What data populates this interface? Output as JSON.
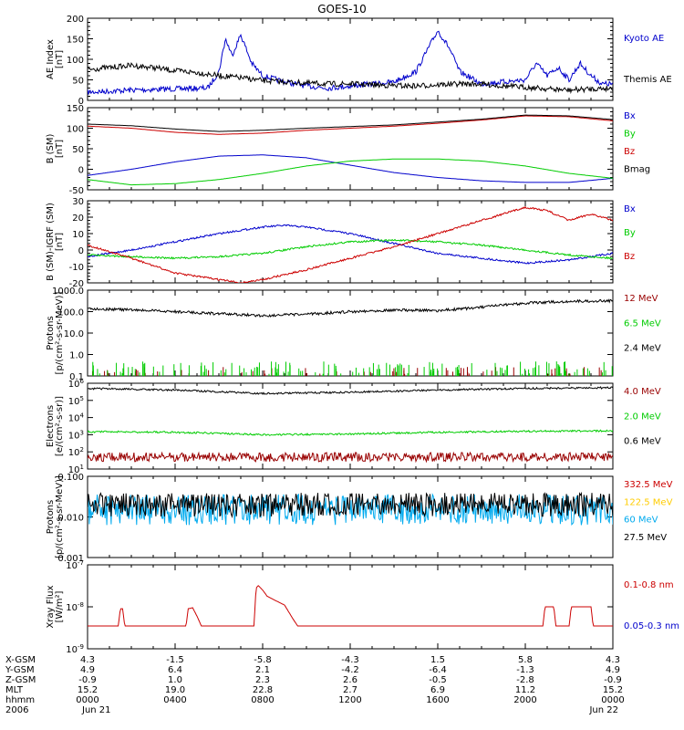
{
  "figure": {
    "title": "GOES-10"
  },
  "chart_data": [
    {
      "type": "line",
      "ylabel": [
        "AE Index",
        "[nT]"
      ],
      "ylim": [
        0,
        200
      ],
      "yscale": "linear",
      "yticks": [
        0,
        50,
        100,
        150,
        200
      ],
      "series": [
        {
          "name": "Kyoto AE",
          "color": "#0000cc",
          "x_hours": [
            0,
            2,
            4,
            5.5,
            6,
            6.3,
            6.6,
            7,
            7.5,
            8,
            9,
            10,
            11,
            12,
            13,
            14,
            15,
            15.5,
            16,
            16.5,
            17,
            18,
            19,
            20,
            20.5,
            21,
            21.5,
            22,
            22.5,
            23,
            23.5,
            24
          ],
          "values": [
            20,
            25,
            28,
            30,
            70,
            150,
            110,
            160,
            90,
            60,
            45,
            35,
            30,
            35,
            40,
            45,
            70,
            120,
            170,
            130,
            70,
            40,
            45,
            50,
            90,
            60,
            80,
            50,
            90,
            60,
            40,
            40
          ]
        },
        {
          "name": "Themis AE",
          "color": "#000000",
          "x_hours": [
            0,
            1,
            2,
            3,
            4,
            5,
            6,
            7,
            8,
            9,
            10,
            11,
            12,
            13,
            14,
            15,
            16,
            17,
            18,
            19,
            20,
            21,
            22,
            23,
            24
          ],
          "values": [
            75,
            80,
            85,
            80,
            72,
            68,
            60,
            55,
            48,
            45,
            42,
            40,
            40,
            38,
            36,
            35,
            38,
            40,
            40,
            35,
            32,
            28,
            25,
            28,
            30
          ]
        }
      ]
    },
    {
      "type": "line",
      "ylabel": [
        "B (SM)",
        "[nT]"
      ],
      "ylim": [
        -50,
        150
      ],
      "yscale": "linear",
      "yticks": [
        -50,
        0,
        50,
        100,
        150
      ],
      "series": [
        {
          "name": "Bx",
          "color": "#0000cc",
          "x_hours": [
            0,
            2,
            4,
            6,
            8,
            10,
            12,
            14,
            16,
            18,
            20,
            22,
            24
          ],
          "values": [
            -15,
            0,
            18,
            32,
            35,
            28,
            10,
            -8,
            -20,
            -28,
            -32,
            -32,
            -22
          ]
        },
        {
          "name": "By",
          "color": "#00cc00",
          "x_hours": [
            0,
            2,
            4,
            6,
            8,
            10,
            12,
            14,
            16,
            18,
            20,
            22,
            24
          ],
          "values": [
            -25,
            -38,
            -35,
            -25,
            -10,
            8,
            20,
            25,
            25,
            20,
            8,
            -10,
            -22
          ]
        },
        {
          "name": "Bz",
          "color": "#cc0000",
          "x_hours": [
            0,
            2,
            4,
            6,
            8,
            10,
            12,
            14,
            16,
            18,
            20,
            22,
            24
          ],
          "values": [
            105,
            100,
            90,
            85,
            88,
            95,
            100,
            105,
            112,
            120,
            130,
            128,
            118
          ]
        },
        {
          "name": "Bmag",
          "color": "#000000",
          "x_hours": [
            0,
            2,
            4,
            6,
            8,
            10,
            12,
            14,
            16,
            18,
            20,
            22,
            24
          ],
          "values": [
            110,
            106,
            98,
            92,
            95,
            100,
            104,
            108,
            115,
            122,
            132,
            130,
            121
          ]
        }
      ]
    },
    {
      "type": "line",
      "ylabel": [
        "B (SM)-IGRF (SM)",
        "[nT]"
      ],
      "ylim": [
        -20,
        30
      ],
      "yscale": "linear",
      "yticks": [
        -20,
        -10,
        0,
        10,
        20,
        30
      ],
      "series": [
        {
          "name": "Bx",
          "color": "#0000cc",
          "x_hours": [
            0,
            2,
            4,
            6,
            8,
            9,
            10,
            12,
            14,
            16,
            18,
            20,
            22,
            24
          ],
          "values": [
            -4,
            0,
            5,
            10,
            14,
            15,
            14,
            10,
            4,
            -2,
            -5,
            -8,
            -6,
            -2
          ]
        },
        {
          "name": "By",
          "color": "#00cc00",
          "x_hours": [
            0,
            2,
            4,
            6,
            8,
            10,
            12,
            14,
            16,
            18,
            20,
            22,
            24
          ],
          "values": [
            -3,
            -4,
            -5,
            -4,
            -2,
            2,
            5,
            6,
            5,
            3,
            0,
            -3,
            -5
          ]
        },
        {
          "name": "Bz",
          "color": "#cc0000",
          "x_hours": [
            0,
            2,
            4,
            6,
            7,
            8,
            10,
            12,
            14,
            16,
            18,
            19,
            20,
            21,
            22,
            23,
            24
          ],
          "values": [
            3,
            -5,
            -14,
            -18,
            -20,
            -18,
            -12,
            -5,
            2,
            10,
            18,
            22,
            26,
            24,
            18,
            22,
            18
          ]
        }
      ]
    },
    {
      "type": "line",
      "ylabel": [
        "Protons",
        "[p/(cm²-s-sr-MeV)]"
      ],
      "ylim": [
        0.1,
        1000
      ],
      "yscale": "log",
      "yticks": [
        0.1,
        1,
        10,
        100,
        1000
      ],
      "ytick_labels": [
        "0.1",
        "1.0",
        "10.0",
        "100.0",
        "1000.0"
      ],
      "series": [
        {
          "name": "12 MeV",
          "color": "#990000",
          "x_hours": [
            0,
            24
          ],
          "values": [
            0.1,
            0.1
          ],
          "note_visible": "sporadic spikes near floor"
        },
        {
          "name": "6.5 MeV",
          "color": "#00cc00",
          "x_hours": [
            0,
            24
          ],
          "values": [
            0.15,
            0.15
          ]
        },
        {
          "name": "2.4 MeV",
          "color": "#000000",
          "x_hours": [
            0,
            2,
            4,
            6,
            8,
            10,
            12,
            14,
            16,
            18,
            20,
            22,
            24
          ],
          "values": [
            140,
            120,
            100,
            80,
            65,
            75,
            100,
            120,
            110,
            160,
            250,
            300,
            320
          ]
        }
      ]
    },
    {
      "type": "line",
      "ylabel": [
        "Electrons",
        "[e/(cm²-s-sr)]"
      ],
      "ylim": [
        10,
        1000000
      ],
      "yscale": "log",
      "yticks": [
        10,
        100,
        1000,
        10000,
        100000,
        1000000
      ],
      "series": [
        {
          "name": "4.0 MeV",
          "color": "#990000",
          "x_hours": [
            0,
            24
          ],
          "values": [
            50,
            50
          ]
        },
        {
          "name": "2.0 MeV",
          "color": "#00cc00",
          "x_hours": [
            0,
            4,
            8,
            12,
            16,
            20,
            24
          ],
          "values": [
            1500,
            1400,
            1000,
            1100,
            1400,
            1600,
            1700
          ]
        },
        {
          "name": "0.6 MeV",
          "color": "#000000",
          "x_hours": [
            0,
            4,
            8,
            12,
            16,
            20,
            24
          ],
          "values": [
            500000,
            400000,
            250000,
            300000,
            400000,
            500000,
            550000
          ]
        }
      ]
    },
    {
      "type": "line",
      "ylabel": [
        "Protons",
        "[p/(cm²-s-sr-MeV)]"
      ],
      "ylim": [
        0.001,
        0.1
      ],
      "yscale": "log",
      "yticks": [
        0.001,
        0.01,
        0.1
      ],
      "ytick_labels": [
        "0.001",
        "0.010",
        "0.100"
      ],
      "series": [
        {
          "name": "332.5 MeV",
          "color": "#cc0000",
          "x_hours": [],
          "values": []
        },
        {
          "name": "122.5 MeV",
          "color": "#ffcc00",
          "x_hours": [],
          "values": []
        },
        {
          "name": "60 MeV",
          "color": "#00aaee",
          "x_hours": [
            0,
            24
          ],
          "values": [
            0.015,
            0.015
          ]
        },
        {
          "name": "27.5 MeV",
          "color": "#000000",
          "x_hours": [
            0,
            24
          ],
          "values": [
            0.02,
            0.02
          ]
        }
      ]
    },
    {
      "type": "line",
      "ylabel": [
        "Xray Flux",
        "[W/m²]"
      ],
      "ylim": [
        1e-09,
        1e-07
      ],
      "yscale": "log",
      "yticks": [
        1e-09,
        1e-08,
        1e-07
      ],
      "series": [
        {
          "name": "0.1-0.8 nm",
          "color": "#cc0000",
          "x_hours": [
            0,
            1.4,
            1.5,
            1.6,
            1.7,
            4.5,
            4.6,
            4.8,
            5,
            5.2,
            7.6,
            7.7,
            7.8,
            8,
            8.2,
            8.6,
            9,
            9.4,
            9.6,
            20.8,
            20.9,
            21.3,
            21.4,
            22,
            22.1,
            23,
            23.1,
            24
          ],
          "values": [
            3.5e-09,
            3.5e-09,
            9e-09,
            9e-09,
            3.5e-09,
            3.5e-09,
            9e-09,
            9.5e-09,
            6e-09,
            3.5e-09,
            3.5e-09,
            2.8e-08,
            3.2e-08,
            2.5e-08,
            1.8e-08,
            1.4e-08,
            1.1e-08,
            5e-09,
            3.5e-09,
            3.5e-09,
            1e-08,
            1e-08,
            3.5e-09,
            3.5e-09,
            1e-08,
            1e-08,
            3.5e-09,
            3.5e-09
          ]
        },
        {
          "name": "0.05-0.3 nm",
          "color": "#0000cc",
          "x_hours": [],
          "values": []
        }
      ]
    }
  ],
  "x_axis": {
    "row_labels": [
      "X-GSM",
      "Y-GSM",
      "Z-GSM",
      "MLT",
      "hhmm",
      "2006"
    ],
    "columns": [
      [
        "4.3",
        "4.9",
        "-0.9",
        "15.2",
        "0000",
        "Jun 21"
      ],
      [
        "-1.5",
        "6.4",
        "1.0",
        "19.0",
        "0400",
        ""
      ],
      [
        "-5.8",
        "2.1",
        "2.3",
        "22.8",
        "0800",
        ""
      ],
      [
        "-4.3",
        "-4.2",
        "2.6",
        "2.7",
        "1200",
        ""
      ],
      [
        "1.5",
        "-6.4",
        "-0.5",
        "6.9",
        "1600",
        ""
      ],
      [
        "5.8",
        "-1.3",
        "-2.8",
        "11.2",
        "2000",
        ""
      ],
      [
        "4.3",
        "4.9",
        "-0.9",
        "15.2",
        "0000",
        "Jun 22"
      ]
    ]
  }
}
